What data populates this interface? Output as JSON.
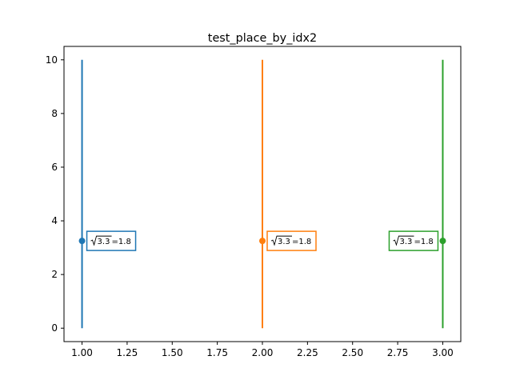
{
  "chart_data": {
    "type": "line",
    "title": "test_place_by_idx2",
    "xlabel": "",
    "ylabel": "",
    "xlim": [
      0.9,
      3.1
    ],
    "ylim": [
      -0.5,
      10.5
    ],
    "xticks": [
      1.0,
      1.25,
      1.5,
      1.75,
      2.0,
      2.25,
      2.5,
      2.75,
      3.0
    ],
    "xtick_labels": [
      "1.00",
      "1.25",
      "1.50",
      "1.75",
      "2.00",
      "2.25",
      "2.50",
      "2.75",
      "3.00"
    ],
    "yticks": [
      0,
      2,
      4,
      6,
      8,
      10
    ],
    "ytick_labels": [
      "0",
      "2",
      "4",
      "6",
      "8",
      "10"
    ],
    "grid": false,
    "series": [
      {
        "x": 1.0,
        "ymin": 0,
        "ymax": 10,
        "marker": {
          "x": 1.0,
          "y": 3.2526
        },
        "color": "#1f77b4",
        "annotation": {
          "radicand": "3.3",
          "result": "=1.8",
          "side": "right"
        }
      },
      {
        "x": 2.0,
        "ymin": 0,
        "ymax": 10,
        "marker": {
          "x": 2.0,
          "y": 3.2526
        },
        "color": "#ff7f0e",
        "annotation": {
          "radicand": "3.3",
          "result": "=1.8",
          "side": "right"
        }
      },
      {
        "x": 3.0,
        "ymin": 0,
        "ymax": 10,
        "marker": {
          "x": 3.0,
          "y": 3.2526
        },
        "color": "#2ca02c",
        "annotation": {
          "radicand": "3.3",
          "result": "=1.8",
          "side": "left"
        }
      }
    ]
  }
}
